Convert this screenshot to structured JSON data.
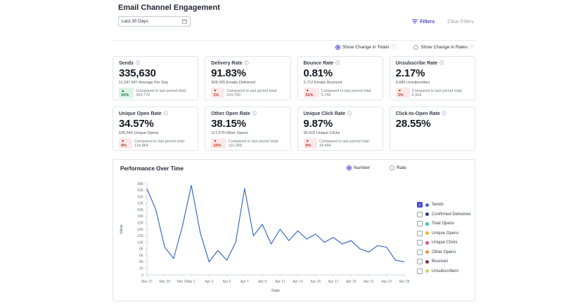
{
  "page": {
    "title": "Email Channel Engagement"
  },
  "toolbar": {
    "date_filter_value": "Last 30 Days",
    "filters_label": "Filters",
    "clear_filters_label": "Clear Filters"
  },
  "change_toggle": {
    "options": [
      {
        "label": "Show Change in Totals",
        "selected": true
      },
      {
        "label": "Show Change in Rates",
        "selected": false
      }
    ]
  },
  "cards": [
    {
      "title": "Sends",
      "value": "335,630",
      "subtext": "11,187.667 Average Per Day",
      "badge": "▲ 10%",
      "tone": "up",
      "comparison": "Compared to last period total: 304,770"
    },
    {
      "title": "Delivery Rate",
      "value": "91.83%",
      "subtext": "308,205 Emails Delivered",
      "badge": "▼ 1%",
      "tone": "down",
      "comparison": "Compared to last period total: 310,700"
    },
    {
      "title": "Bounce Rate",
      "value": "0.81%",
      "subtext": "2,712 Emails Bounced",
      "badge": "▼ 53%",
      "tone": "down",
      "comparison": "Compared to last period total: 5,746"
    },
    {
      "title": "Unsubscribe Rate",
      "value": "2.17%",
      "subtext": "6,685 Unsubscribes",
      "badge": "▼ 3%",
      "tone": "down",
      "comparison": "Compared to last period total: 6,916"
    },
    {
      "title": "Unique Open Rate",
      "value": "34.57%",
      "subtext": "106,549 Unique Opens",
      "badge": "▼ 9%",
      "tone": "down",
      "comparison": "Compared to last period total: 116,954"
    },
    {
      "title": "Other Open Rate",
      "value": "38.15%",
      "subtext": "117,579 Other Opens",
      "badge": "▼ 10%",
      "tone": "down",
      "comparison": "Compared to last period total: 131,009"
    },
    {
      "title": "Unique Click Rate",
      "value": "9.87%",
      "subtext": "30,415 Unique Clicks",
      "badge": "▼ 9%",
      "tone": "down",
      "comparison": "Compared to last period total: 33,484"
    },
    {
      "title": "Click-to-Open Rate",
      "value": "28.55%",
      "subtext": "",
      "badge": "",
      "tone": "",
      "comparison": ""
    }
  ],
  "chart_panel": {
    "title": "Performance Over Time",
    "mode_options": [
      {
        "label": "Number",
        "selected": true
      },
      {
        "label": "Rate",
        "selected": false
      }
    ],
    "legend": [
      {
        "label": "Sends",
        "color": "#3e6ac8",
        "checked": true
      },
      {
        "label": "Confirmed Deliveries",
        "color": "#2b3282",
        "checked": false
      },
      {
        "label": "Total Opens",
        "color": "#35c4a2",
        "checked": false
      },
      {
        "label": "Unique Opens",
        "color": "#f0b429",
        "checked": false
      },
      {
        "label": "Unique Clicks",
        "color": "#e8488a",
        "checked": false
      },
      {
        "label": "Other Opens",
        "color": "#ef8e3b",
        "checked": false
      },
      {
        "label": "Bounces",
        "color": "#8a2846",
        "checked": false
      },
      {
        "label": "Unsubscribers",
        "color": "#c5d86d",
        "checked": false
      }
    ]
  },
  "chart_data": {
    "type": "line",
    "title": "Performance Over Time",
    "xlabel": "Date",
    "ylabel": "Value",
    "ylim": [
      0,
      28000
    ],
    "y_tick_step": 2000,
    "grid": false,
    "legend_position": "right",
    "x_ticks": [
      {
        "day": 0,
        "label": "Mar 27"
      },
      {
        "day": 2,
        "label": "Mar 29"
      },
      {
        "day": 4,
        "label": "Mar 31"
      },
      {
        "day": 5,
        "label": "Apr 1"
      },
      {
        "day": 7,
        "label": "Apr 3"
      },
      {
        "day": 9,
        "label": "Apr 5"
      },
      {
        "day": 11,
        "label": "Apr 7"
      },
      {
        "day": 13,
        "label": "Apr 9"
      },
      {
        "day": 15,
        "label": "Apr 11"
      },
      {
        "day": 17,
        "label": "Apr 13"
      },
      {
        "day": 19,
        "label": "Apr 15"
      },
      {
        "day": 21,
        "label": "Apr 17"
      },
      {
        "day": 23,
        "label": "Apr 19"
      },
      {
        "day": 25,
        "label": "Apr 21"
      },
      {
        "day": 27,
        "label": "Apr 23"
      },
      {
        "day": 29,
        "label": "Apr 25"
      }
    ],
    "series": [
      {
        "name": "Sends",
        "color": "#3e6ac8",
        "x": [
          "Mar 27",
          "Mar 28",
          "Mar 29",
          "Mar 30",
          "Mar 31",
          "Apr 1",
          "Apr 2",
          "Apr 3",
          "Apr 4",
          "Apr 5",
          "Apr 6",
          "Apr 7",
          "Apr 8",
          "Apr 9",
          "Apr 10",
          "Apr 11",
          "Apr 12",
          "Apr 13",
          "Apr 14",
          "Apr 15",
          "Apr 16",
          "Apr 17",
          "Apr 18",
          "Apr 19",
          "Apr 20",
          "Apr 21",
          "Apr 22",
          "Apr 23",
          "Apr 24",
          "Apr 25"
        ],
        "values": [
          26500,
          20000,
          8500,
          5000,
          15000,
          27500,
          13000,
          4000,
          7500,
          4500,
          10000,
          26500,
          12000,
          15500,
          9500,
          14000,
          10500,
          13500,
          11000,
          12500,
          10000,
          11500,
          9500,
          10500,
          8000,
          7000,
          9000,
          8500,
          4500,
          4000
        ]
      }
    ]
  }
}
